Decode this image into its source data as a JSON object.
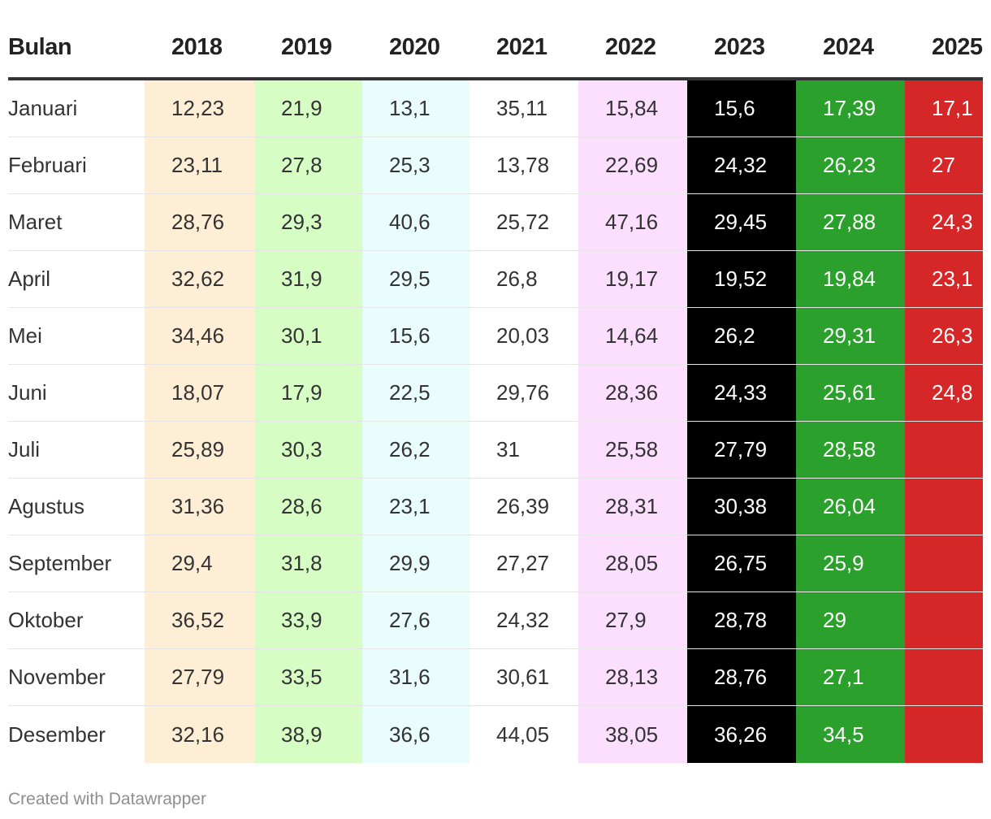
{
  "chart_data": {
    "type": "table",
    "columns": [
      "Bulan",
      "2018",
      "2019",
      "2020",
      "2021",
      "2022",
      "2023",
      "2024",
      "2025"
    ],
    "rows": [
      [
        "Januari",
        "12,23",
        "21,9",
        "13,1",
        "35,11",
        "15,84",
        "15,6",
        "17,39",
        "17,1"
      ],
      [
        "Februari",
        "23,11",
        "27,8",
        "25,3",
        "13,78",
        "22,69",
        "24,32",
        "26,23",
        "27"
      ],
      [
        "Maret",
        "28,76",
        "29,3",
        "40,6",
        "25,72",
        "47,16",
        "29,45",
        "27,88",
        "24,3"
      ],
      [
        "April",
        "32,62",
        "31,9",
        "29,5",
        "26,8",
        "19,17",
        "19,52",
        "19,84",
        "23,1"
      ],
      [
        "Mei",
        "34,46",
        "30,1",
        "15,6",
        "20,03",
        "14,64",
        "26,2",
        "29,31",
        "26,3"
      ],
      [
        "Juni",
        "18,07",
        "17,9",
        "22,5",
        "29,76",
        "28,36",
        "24,33",
        "25,61",
        "24,8"
      ],
      [
        "Juli",
        "25,89",
        "30,3",
        "26,2",
        "31",
        "25,58",
        "27,79",
        "28,58",
        ""
      ],
      [
        "Agustus",
        "31,36",
        "28,6",
        "23,1",
        "26,39",
        "28,31",
        "30,38",
        "26,04",
        ""
      ],
      [
        "September",
        "29,4",
        "31,8",
        "29,9",
        "27,27",
        "28,05",
        "26,75",
        "25,9",
        ""
      ],
      [
        "Oktober",
        "36,52",
        "33,9",
        "27,6",
        "24,32",
        "27,9",
        "28,78",
        "29",
        ""
      ],
      [
        "November",
        "27,79",
        "33,5",
        "31,6",
        "30,61",
        "28,13",
        "28,76",
        "27,1",
        ""
      ],
      [
        "Desember",
        "32,16",
        "38,9",
        "36,6",
        "44,05",
        "38,05",
        "36,26",
        "34,5",
        ""
      ]
    ],
    "column_colors": {
      "2018": {
        "background": "#feeed5",
        "text": "#333333"
      },
      "2019": {
        "background": "#d6fdc4",
        "text": "#333333"
      },
      "2020": {
        "background": "#e9fdfd",
        "text": "#333333"
      },
      "2021": {
        "background": "#ffffff",
        "text": "#333333"
      },
      "2022": {
        "background": "#fcdffe",
        "text": "#333333"
      },
      "2023": {
        "background": "#000000",
        "text": "#ffffff"
      },
      "2024": {
        "background": "#2ca02c",
        "text": "#ffffff"
      },
      "2025": {
        "background": "#d62728",
        "text": "#ffffff"
      }
    }
  },
  "footer": {
    "credit": "Created with Datawrapper"
  }
}
